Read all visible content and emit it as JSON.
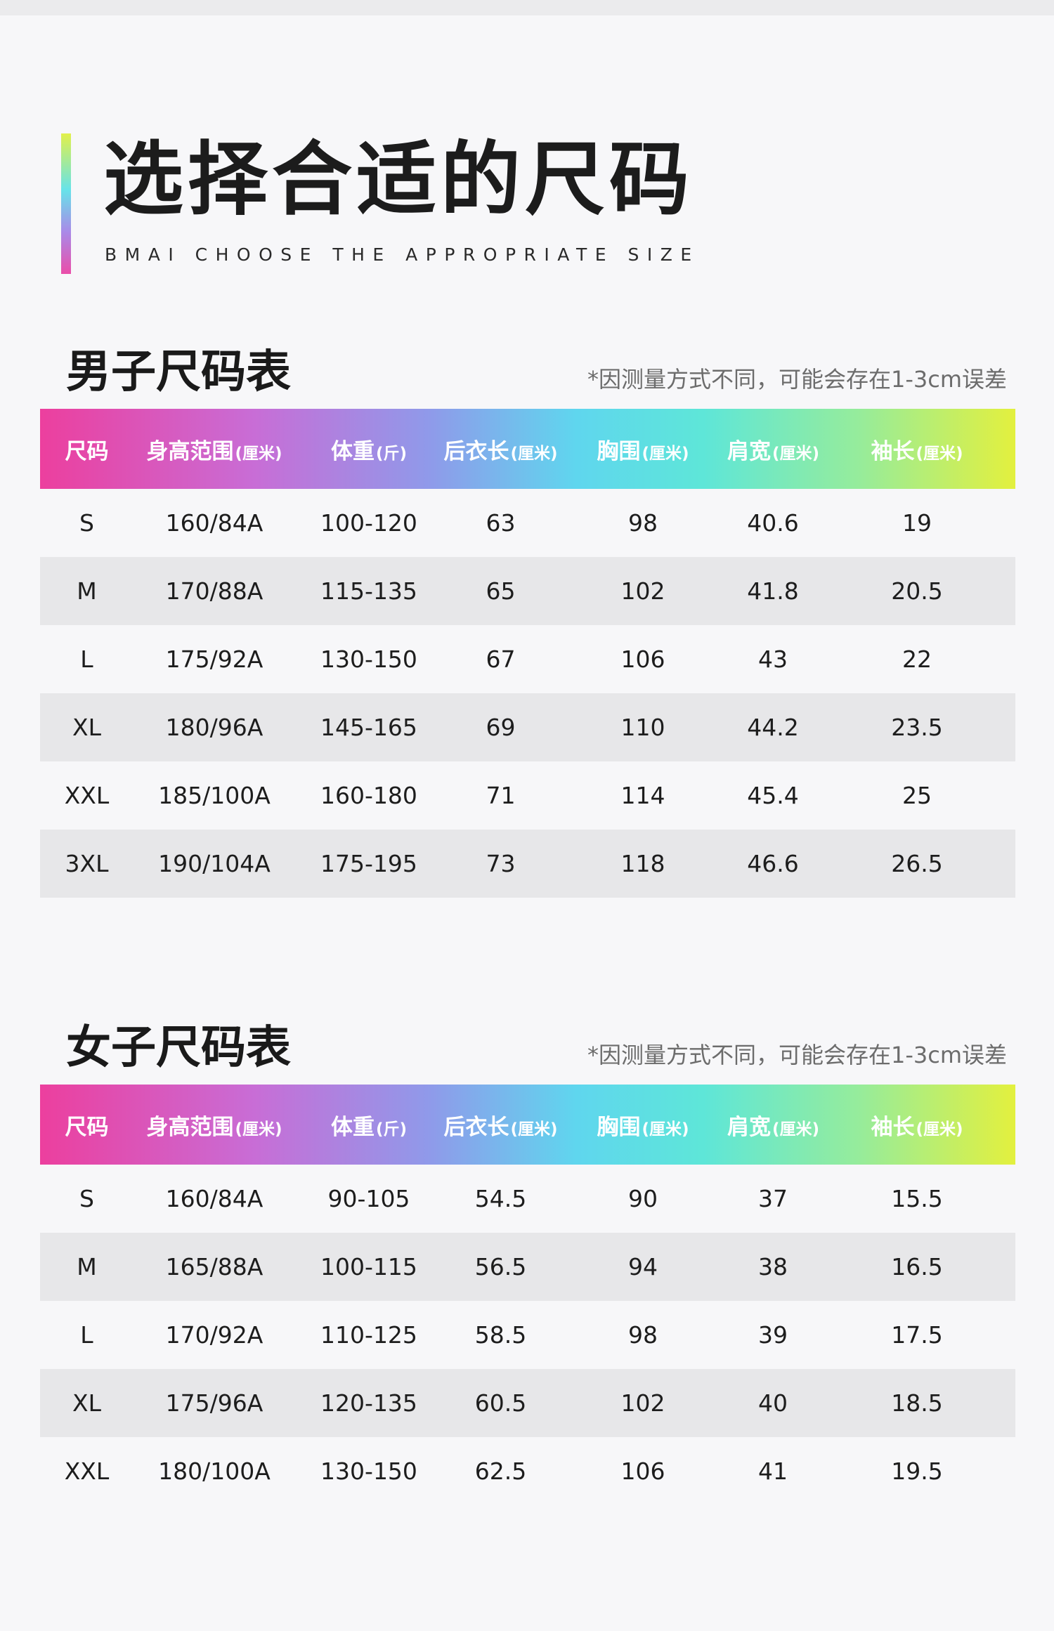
{
  "heading": {
    "title": "选择合适的尺码",
    "subtitle": "BMAI CHOOSE THE APPROPRIATE SIZE"
  },
  "columns": [
    {
      "label": "尺码",
      "unit": ""
    },
    {
      "label": "身高范围",
      "unit": "(厘米)"
    },
    {
      "label": "体重",
      "unit": "(斤)"
    },
    {
      "label": "后衣长",
      "unit": "(厘米)"
    },
    {
      "label": "胸围",
      "unit": "(厘米)"
    },
    {
      "label": "肩宽",
      "unit": "(厘米)"
    },
    {
      "label": "袖长",
      "unit": "(厘米)"
    }
  ],
  "men": {
    "title": "男子尺码表",
    "note": "*因测量方式不同，可能会存在1-3cm误差",
    "rows": [
      [
        "S",
        "160/84A",
        "100-120",
        "63",
        "98",
        "40.6",
        "19"
      ],
      [
        "M",
        "170/88A",
        "115-135",
        "65",
        "102",
        "41.8",
        "20.5"
      ],
      [
        "L",
        "175/92A",
        "130-150",
        "67",
        "106",
        "43",
        "22"
      ],
      [
        "XL",
        "180/96A",
        "145-165",
        "69",
        "110",
        "44.2",
        "23.5"
      ],
      [
        "XXL",
        "185/100A",
        "160-180",
        "71",
        "114",
        "45.4",
        "25"
      ],
      [
        "3XL",
        "190/104A",
        "175-195",
        "73",
        "118",
        "46.6",
        "26.5"
      ]
    ]
  },
  "women": {
    "title": "女子尺码表",
    "note": "*因测量方式不同，可能会存在1-3cm误差",
    "rows": [
      [
        "S",
        "160/84A",
        "90-105",
        "54.5",
        "90",
        "37",
        "15.5"
      ],
      [
        "M",
        "165/88A",
        "100-115",
        "56.5",
        "94",
        "38",
        "16.5"
      ],
      [
        "L",
        "170/92A",
        "110-125",
        "58.5",
        "98",
        "39",
        "17.5"
      ],
      [
        "XL",
        "175/96A",
        "120-135",
        "60.5",
        "102",
        "40",
        "18.5"
      ],
      [
        "XXL",
        "180/100A",
        "130-150",
        "62.5",
        "106",
        "41",
        "19.5"
      ]
    ]
  },
  "colors": {
    "accent_start": "#ea4ea9",
    "accent_end": "#e2f04a",
    "row_alt": "#e7e7e9"
  }
}
